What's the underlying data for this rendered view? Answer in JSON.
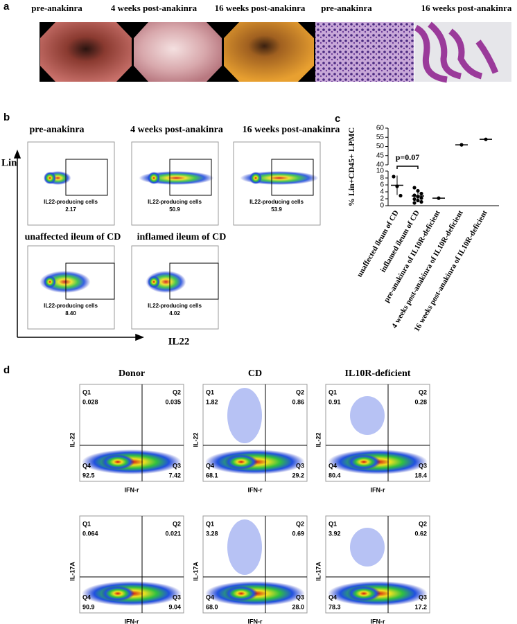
{
  "panel_a": {
    "letter": "a",
    "titles": [
      "pre-anakinra",
      "4 weeks post-anakinra",
      "16 weeks post-anakinra",
      "pre-anakinra",
      "16 weeks post-anakinra"
    ]
  },
  "panel_b": {
    "letter": "b",
    "y_axis": "Lin",
    "x_axis": "IL22",
    "plots": [
      {
        "title": "pre-anakinra",
        "gate": "IL22-producing cells",
        "percent": "2.17"
      },
      {
        "title": "4 weeks post-anakinra",
        "gate": "IL22-producing cells",
        "percent": "50.9"
      },
      {
        "title": "16 weeks post-anakinra",
        "gate": "IL22-producing cells",
        "percent": "53.9"
      },
      {
        "title": "unaffected ileum of CD",
        "gate": "IL22-producing cells",
        "percent": "8.40"
      },
      {
        "title": "inflamed ileum of CD",
        "gate": "IL22-producing cells",
        "percent": "4.02"
      }
    ]
  },
  "chart_data": {
    "type": "dotplot",
    "letter": "c",
    "y_label": "% Lin+CD45+ LPMC",
    "categories": [
      "unaffected ileum of CD",
      "inflamed ileum of CD",
      "pre-anakinra of IL10R-deficient",
      "4 weeks post-anakinra of IL10R-deficient",
      "16 weeks post-anakinra of IL10R-deficient"
    ],
    "values": [
      5.9,
      2.8,
      2.17,
      50.9,
      53.9
    ],
    "errors": [
      2.8,
      1.4,
      null,
      null,
      null
    ],
    "points": [
      [
        8.4,
        5.6,
        2.9
      ],
      [
        5.2,
        4.3,
        3.5,
        3.0,
        2.6,
        2.2,
        1.9,
        1.5,
        1.1,
        0.8
      ],
      [
        2.17
      ],
      [
        50.9
      ],
      [
        53.9
      ]
    ],
    "annotation": "p=0.07",
    "ylim": [
      0,
      60
    ],
    "ybreak": [
      10,
      40
    ],
    "yticks": [
      0,
      2,
      4,
      6,
      8,
      10,
      40,
      45,
      50,
      55,
      60
    ],
    "color": "#000000"
  },
  "panel_d": {
    "letter": "d",
    "columns": [
      "Donor",
      "CD",
      "IL10R-deficient"
    ],
    "x_axis": "IFN-r",
    "rows": [
      {
        "y_axis": "IL-22",
        "plots": [
          {
            "q1": "Q1",
            "q1v": "0.028",
            "q2": "Q2",
            "q2v": "0.035",
            "q4": "Q4",
            "q4v": "92.5",
            "q3": "Q3",
            "q3v": "7.42"
          },
          {
            "q1": "Q1",
            "q1v": "1.82",
            "q2": "Q2",
            "q2v": "0.86",
            "q4": "Q4",
            "q4v": "68.1",
            "q3": "Q3",
            "q3v": "29.2"
          },
          {
            "q1": "Q1",
            "q1v": "0.91",
            "q2": "Q2",
            "q2v": "0.28",
            "q4": "Q4",
            "q4v": "80.4",
            "q3": "Q3",
            "q3v": "18.4"
          }
        ]
      },
      {
        "y_axis": "IL-17A",
        "plots": [
          {
            "q1": "Q1",
            "q1v": "0.064",
            "q2": "Q2",
            "q2v": "0.021",
            "q4": "Q4",
            "q4v": "90.9",
            "q3": "Q3",
            "q3v": "9.04"
          },
          {
            "q1": "Q1",
            "q1v": "3.28",
            "q2": "Q2",
            "q2v": "0.69",
            "q4": "Q4",
            "q4v": "68.0",
            "q3": "Q3",
            "q3v": "28.0"
          },
          {
            "q1": "Q1",
            "q1v": "3.92",
            "q2": "Q2",
            "q2v": "0.62",
            "q4": "Q4",
            "q4v": "78.3",
            "q3": "Q3",
            "q3v": "17.2"
          }
        ]
      }
    ]
  }
}
